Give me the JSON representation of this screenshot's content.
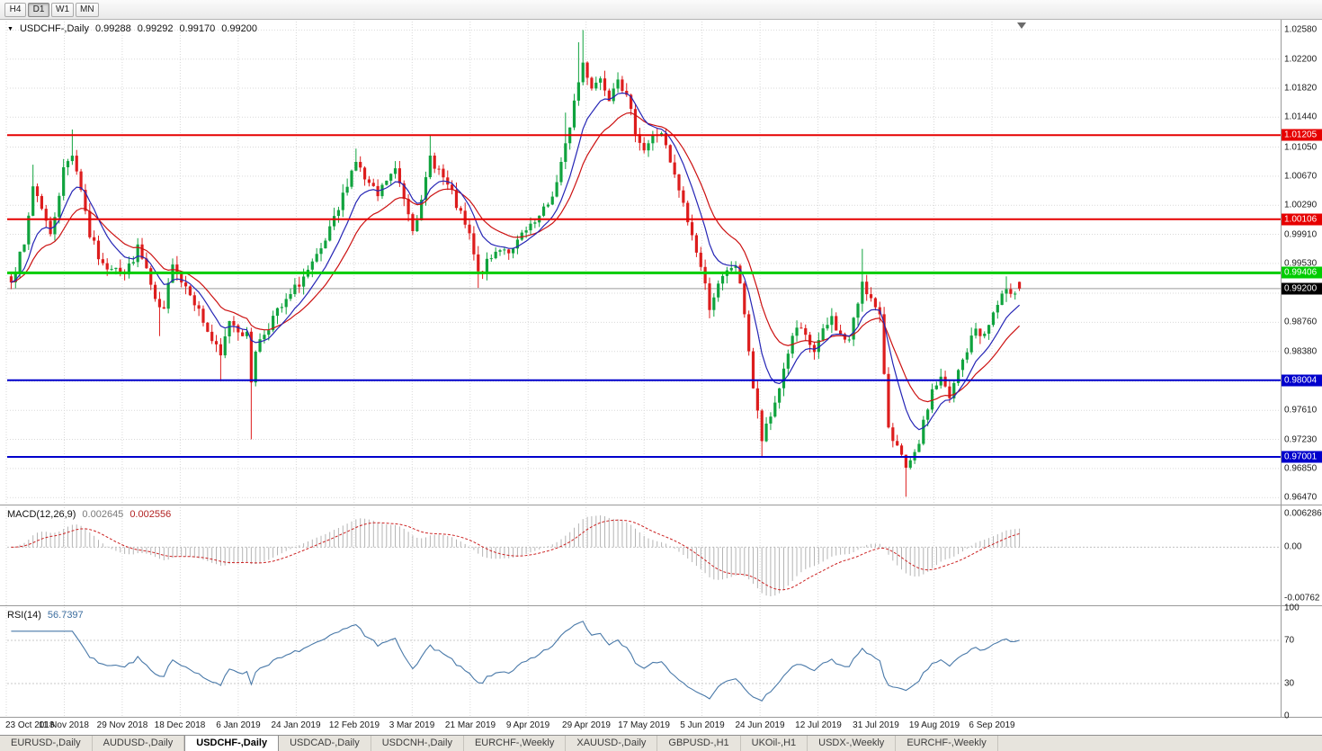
{
  "toolbar": {
    "timeframes": [
      {
        "label": "H4",
        "active": false
      },
      {
        "label": "D1",
        "active": true
      },
      {
        "label": "W1",
        "active": false
      },
      {
        "label": "MN",
        "active": false
      }
    ]
  },
  "chart_header": {
    "symbol_label": "USDCHF-,Daily",
    "open": "0.99288",
    "high": "0.99292",
    "low": "0.99170",
    "close": "0.99200"
  },
  "current_price": {
    "label": "0.99200",
    "value": 0.992,
    "badge_bg": "#000000"
  },
  "bottom_tabs": [
    {
      "label": "EURUSD-,Daily",
      "active": false
    },
    {
      "label": "AUDUSD-,Daily",
      "active": false
    },
    {
      "label": "USDCHF-,Daily",
      "active": true
    },
    {
      "label": "USDCAD-,Daily",
      "active": false
    },
    {
      "label": "USDCNH-,Daily",
      "active": false
    },
    {
      "label": "EURCHF-,Weekly",
      "active": false
    },
    {
      "label": "XAUUSD-,Daily",
      "active": false
    },
    {
      "label": "GBPUSD-,H1",
      "active": false
    },
    {
      "label": "UKOil-,H1",
      "active": false
    },
    {
      "label": "USDX-,Weekly",
      "active": false
    },
    {
      "label": "EURCHF-,Weekly",
      "active": false
    }
  ],
  "chart_data": {
    "type": "candlestick",
    "title": "USDCHF-,Daily",
    "symbol": "USDCHF-",
    "period": "Daily",
    "x_ticks": [
      "23 Oct 2018",
      "11 Nov 2018",
      "29 Nov 2018",
      "18 Dec 2018",
      "6 Jan 2019",
      "24 Jan 2019",
      "12 Feb 2019",
      "3 Mar 2019",
      "21 Mar 2019",
      "9 Apr 2019",
      "29 Apr 2019",
      "17 May 2019",
      "5 Jun 2019",
      "24 Jun 2019",
      "12 Jul 2019",
      "31 Jul 2019",
      "19 Aug 2019",
      "6 Sep 2019"
    ],
    "y_ticks": [
      "1.02580",
      "1.02200",
      "1.01820",
      "1.01440",
      "1.01050",
      "1.00670",
      "1.00290",
      "0.99910",
      "0.99530",
      "0.99140",
      "0.98760",
      "0.98380",
      "0.97990",
      "0.97610",
      "0.97230",
      "0.96850",
      "0.96470"
    ],
    "y_range": [
      0.9639,
      1.0269
    ],
    "candle_count": 232,
    "noise": 0.0007,
    "wick": 0.0011,
    "ohlc_current": {
      "open": 0.99288,
      "high": 0.99292,
      "low": 0.9917,
      "close": 0.992
    },
    "price_path": [
      [
        0,
        0.9935
      ],
      [
        3,
        0.9975
      ],
      [
        5,
        1.0055
      ],
      [
        7,
        1.0028
      ],
      [
        9,
        0.9988
      ],
      [
        12,
        1.0075
      ],
      [
        14,
        1.0098
      ],
      [
        16,
        1.0052
      ],
      [
        18,
        0.999
      ],
      [
        21,
        0.9948
      ],
      [
        24,
        0.9952
      ],
      [
        26,
        0.9938
      ],
      [
        29,
        0.9972
      ],
      [
        31,
        0.9945
      ],
      [
        33,
        0.99
      ],
      [
        35,
        0.9888
      ],
      [
        37,
        0.9958
      ],
      [
        39,
        0.993
      ],
      [
        41,
        0.9918
      ],
      [
        43,
        0.989
      ],
      [
        46,
        0.9852
      ],
      [
        48,
        0.983
      ],
      [
        50,
        0.988
      ],
      [
        52,
        0.9868
      ],
      [
        54,
        0.9858
      ],
      [
        55,
        0.98
      ],
      [
        56,
        0.9842
      ],
      [
        58,
        0.9862
      ],
      [
        60,
        0.9882
      ],
      [
        63,
        0.9902
      ],
      [
        66,
        0.9928
      ],
      [
        69,
        0.995
      ],
      [
        71,
        0.9968
      ],
      [
        73,
        0.9995
      ],
      [
        75,
        1.0022
      ],
      [
        77,
        1.006
      ],
      [
        79,
        1.0088
      ],
      [
        81,
        1.0062
      ],
      [
        84,
        1.004
      ],
      [
        86,
        1.0062
      ],
      [
        88,
        1.0074
      ],
      [
        90,
        1.004
      ],
      [
        92,
        1.0002
      ],
      [
        94,
        1.003
      ],
      [
        96,
        1.0092
      ],
      [
        98,
        1.0075
      ],
      [
        101,
        1.0042
      ],
      [
        103,
        1.0015
      ],
      [
        105,
        0.9988
      ],
      [
        107,
        0.9938
      ],
      [
        109,
        0.9952
      ],
      [
        112,
        0.9975
      ],
      [
        115,
        0.9968
      ],
      [
        117,
        0.999
      ],
      [
        119,
        0.9998
      ],
      [
        121,
        1.0012
      ],
      [
        123,
        1.003
      ],
      [
        125,
        1.0058
      ],
      [
        127,
        1.0105
      ],
      [
        129,
        1.0165
      ],
      [
        131,
        1.0215
      ],
      [
        133,
        1.0185
      ],
      [
        135,
        1.0195
      ],
      [
        137,
        1.0172
      ],
      [
        139,
        1.02
      ],
      [
        141,
        1.0168
      ],
      [
        143,
        1.0128
      ],
      [
        145,
        1.0102
      ],
      [
        147,
        1.0118
      ],
      [
        149,
        1.0125
      ],
      [
        151,
        1.0082
      ],
      [
        153,
        1.0048
      ],
      [
        155,
        1.0008
      ],
      [
        157,
        0.997
      ],
      [
        158,
        0.9948
      ],
      [
        160,
        0.9898
      ],
      [
        161,
        0.9912
      ],
      [
        163,
        0.9932
      ],
      [
        165,
        0.9948
      ],
      [
        166,
        0.9952
      ],
      [
        168,
        0.989
      ],
      [
        170,
        0.979
      ],
      [
        172,
        0.9722
      ],
      [
        174,
        0.9752
      ],
      [
        176,
        0.9792
      ],
      [
        178,
        0.9838
      ],
      [
        180,
        0.9868
      ],
      [
        182,
        0.9855
      ],
      [
        184,
        0.9838
      ],
      [
        186,
        0.9862
      ],
      [
        188,
        0.9882
      ],
      [
        190,
        0.9858
      ],
      [
        192,
        0.9852
      ],
      [
        194,
        0.9902
      ],
      [
        195,
        0.9932
      ],
      [
        197,
        0.9905
      ],
      [
        199,
        0.988
      ],
      [
        201,
        0.9742
      ],
      [
        203,
        0.9712
      ],
      [
        205,
        0.9682
      ],
      [
        207,
        0.97
      ],
      [
        209,
        0.9742
      ],
      [
        211,
        0.9788
      ],
      [
        213,
        0.9802
      ],
      [
        215,
        0.9775
      ],
      [
        217,
        0.9812
      ],
      [
        219,
        0.984
      ],
      [
        221,
        0.9868
      ],
      [
        223,
        0.9858
      ],
      [
        225,
        0.9888
      ],
      [
        227,
        0.9908
      ],
      [
        229,
        0.9918
      ],
      [
        231,
        0.992
      ]
    ],
    "spikes": [
      {
        "i": 5,
        "high": 1.0082
      },
      {
        "i": 14,
        "high": 1.0128
      },
      {
        "i": 34,
        "low": 0.9858
      },
      {
        "i": 48,
        "low": 0.9799
      },
      {
        "i": 55,
        "low": 0.9723
      },
      {
        "i": 79,
        "high": 1.0103
      },
      {
        "i": 96,
        "high": 1.0121
      },
      {
        "i": 107,
        "low": 0.9921
      },
      {
        "i": 127,
        "high": 1.015
      },
      {
        "i": 130,
        "high": 1.0242
      },
      {
        "i": 131,
        "high": 1.0258
      },
      {
        "i": 172,
        "low": 0.97
      },
      {
        "i": 195,
        "high": 0.9972
      },
      {
        "i": 205,
        "low": 0.9648
      },
      {
        "i": 228,
        "high": 0.9936
      }
    ],
    "levels": [
      {
        "value": 1.01205,
        "label": "1.01205",
        "color": "#e60000",
        "width": 2
      },
      {
        "value": 1.00106,
        "label": "1.00106",
        "color": "#e60000",
        "width": 2
      },
      {
        "value": 0.99406,
        "label": "0.99406",
        "color": "#00cc00",
        "width": 3
      },
      {
        "value": 0.98004,
        "label": "0.98004",
        "color": "#0000cc",
        "width": 2
      },
      {
        "value": 0.97001,
        "label": "0.97001",
        "color": "#0000cc",
        "width": 2
      }
    ],
    "ma_fast_period": 9,
    "ma_slow_period": 18,
    "colors": {
      "up": "#10a33e",
      "down": "#dd1d1d",
      "ma_fast": "#2525b5",
      "ma_slow": "#cc1111",
      "grid": "#d9d9d9",
      "macd_hist": "#b4b4b4",
      "macd_signal": "#cc2222",
      "rsi": "#4878a8",
      "current_price_line": "#9a9a9a"
    },
    "macd": {
      "label": "MACD(12,26,9)",
      "value_main": "0.002645",
      "value_signal": "0.002556",
      "axis": [
        "0.006286",
        "0.00",
        "-0.00762"
      ],
      "fast": 12,
      "slow": 26,
      "signal": 9
    },
    "rsi": {
      "label": "RSI(14)",
      "value": "56.7397",
      "period": 14,
      "axis": [
        "100",
        "70",
        "30",
        "0"
      ],
      "level_lines": [
        70,
        30
      ]
    }
  }
}
